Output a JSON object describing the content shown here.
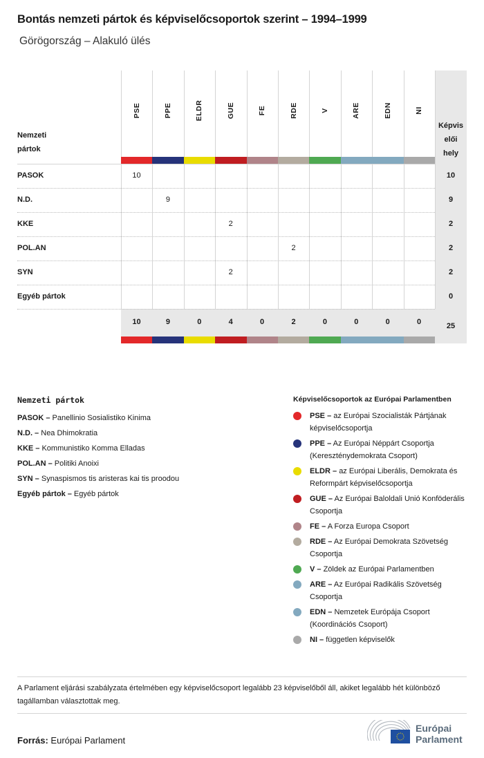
{
  "title": "Bontás nemzeti pártok és képviselőcsoportok szerint – 1994–1999",
  "subtitle": "Görögország – Alakuló ülés",
  "table": {
    "row_header": [
      "Nemzeti",
      "pártok"
    ],
    "total_header": [
      "Képvis",
      "elői",
      "hely"
    ],
    "groups": [
      {
        "code": "PSE",
        "color": "#e3282a"
      },
      {
        "code": "PPE",
        "color": "#26337a"
      },
      {
        "code": "ELDR",
        "color": "#e9dc00"
      },
      {
        "code": "GUE",
        "color": "#c01d21"
      },
      {
        "code": "FE",
        "color": "#b08489"
      },
      {
        "code": "RDE",
        "color": "#b3ab9f"
      },
      {
        "code": "V",
        "color": "#4fa952"
      },
      {
        "code": "ARE",
        "color": "#83a9bf"
      },
      {
        "code": "EDN",
        "color": "#83a9bf"
      },
      {
        "code": "NI",
        "color": "#a9a9a9"
      }
    ],
    "rows": [
      {
        "party": "PASOK",
        "values": [
          "10",
          "",
          "",
          "",
          "",
          "",
          "",
          "",
          "",
          ""
        ],
        "total": "10"
      },
      {
        "party": "N.D.",
        "values": [
          "",
          "9",
          "",
          "",
          "",
          "",
          "",
          "",
          "",
          ""
        ],
        "total": "9"
      },
      {
        "party": "KKE",
        "values": [
          "",
          "",
          "",
          "2",
          "",
          "",
          "",
          "",
          "",
          ""
        ],
        "total": "2"
      },
      {
        "party": "POL.AN",
        "values": [
          "",
          "",
          "",
          "",
          "",
          "2",
          "",
          "",
          "",
          ""
        ],
        "total": "2"
      },
      {
        "party": "SYN",
        "values": [
          "",
          "",
          "",
          "2",
          "",
          "",
          "",
          "",
          "",
          ""
        ],
        "total": "2"
      },
      {
        "party": "Egyéb pártok",
        "values": [
          "",
          "",
          "",
          "",
          "",
          "",
          "",
          "",
          "",
          ""
        ],
        "total": "0"
      }
    ],
    "totals": [
      "10",
      "9",
      "0",
      "4",
      "0",
      "2",
      "0",
      "0",
      "0",
      "0"
    ],
    "grand_total": "25"
  },
  "legend_national": {
    "title": "Nemzeti pártok",
    "items": [
      {
        "code": "PASOK –",
        "name": "Panellinio Sosialistiko Kinima"
      },
      {
        "code": "N.D. –",
        "name": "Nea Dhimokratia"
      },
      {
        "code": "KKE –",
        "name": "Kommunistiko Komma Elladas"
      },
      {
        "code": "POL.AN –",
        "name": "Politiki Anoixi"
      },
      {
        "code": "SYN –",
        "name": "Synaspismos tis aristeras kai tis proodou"
      },
      {
        "code": "Egyéb pártok –",
        "name": "Egyéb pártok"
      }
    ]
  },
  "legend_groups": {
    "title": "Képviselőcsoportok az Európai Parlamentben",
    "items": [
      {
        "code": "PSE –",
        "name": "az Európai Szocialisták Pártjának képviselőcsoportja"
      },
      {
        "code": "PPE –",
        "name": "Az Európai Néppárt Csoportja (Kereszténydemokrata Csoport)"
      },
      {
        "code": "ELDR –",
        "name": "az Európai Liberális, Demokrata és Reformpárt képviselőcsoportja"
      },
      {
        "code": "GUE –",
        "name": "Az Európai Baloldali Unió Konföderális Csoportja"
      },
      {
        "code": "FE –",
        "name": "A Forza Europa Csoport"
      },
      {
        "code": "RDE –",
        "name": "Az Európai Demokrata Szövetség Csoportja"
      },
      {
        "code": "V –",
        "name": "Zöldek az Európai Parlamentben"
      },
      {
        "code": "ARE –",
        "name": "Az Európai Radikális Szövetség Csoportja"
      },
      {
        "code": "EDN –",
        "name": "Nemzetek Európája Csoport (Koordinációs Csoport)"
      },
      {
        "code": "NI –",
        "name": "független képviselők"
      }
    ]
  },
  "note": "A Parlament eljárási szabályzata értelmében egy képviselőcsoport legalább 23 képviselőből áll, akiket legalább hét különböző tagállamban választottak meg.",
  "source": {
    "label": "Forrás:",
    "value": "Európai Parlament"
  },
  "logo": {
    "line1": "Európai",
    "line2": "Parlament"
  }
}
